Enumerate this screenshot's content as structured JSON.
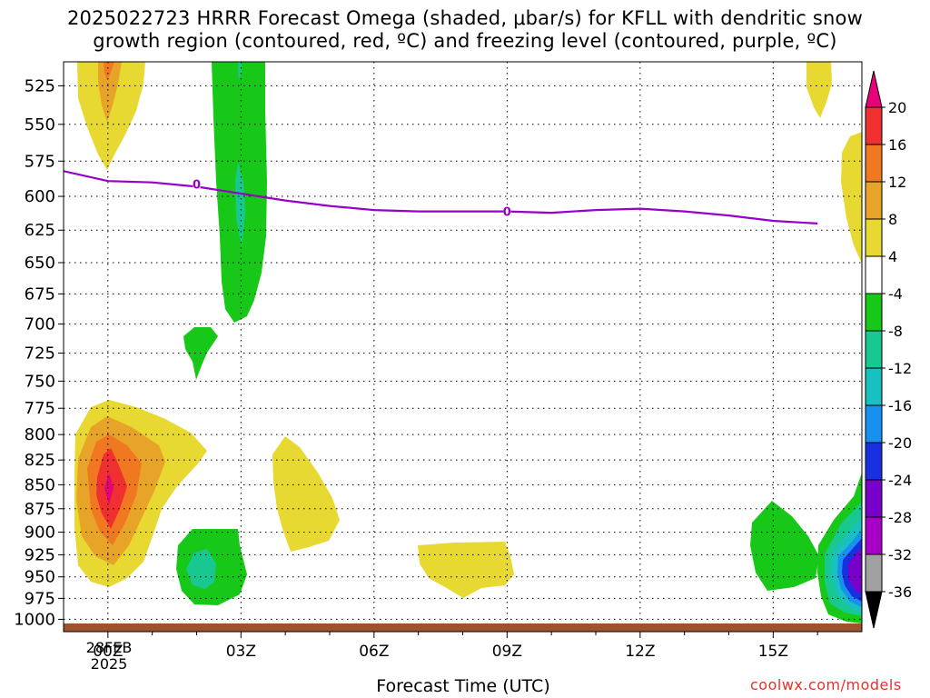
{
  "title": {
    "line1": "2025022723 HRRR Forecast Omega (shaded, μbar/s) for KFLL with dendritic snow",
    "line2": "growth region (contoured, red, ºC) and freezing level (contoured, purple, ºC)"
  },
  "credit": "coolwx.com/models",
  "chart_data": {
    "type": "contour",
    "xlabel": "Forecast Time (UTC)",
    "x_ticks": [
      "00Z",
      "03Z",
      "06Z",
      "09Z",
      "12Z",
      "15Z"
    ],
    "x_tick_hours": [
      1,
      4,
      7,
      10,
      13,
      16
    ],
    "x_range_hours": [
      0,
      18
    ],
    "date_label": [
      "28FEB",
      "2025"
    ],
    "y_ticks": [
      525,
      550,
      575,
      600,
      625,
      650,
      675,
      700,
      725,
      750,
      775,
      800,
      825,
      850,
      875,
      900,
      925,
      950,
      975,
      1000
    ],
    "y_axis": "pressure (hPa), log scale, top 510 bottom 1015",
    "grid": true,
    "colorbar": {
      "levels": [
        20,
        16,
        12,
        8,
        4,
        -4,
        -8,
        -12,
        -16,
        -20,
        -24,
        -28,
        -32,
        -36
      ],
      "colors": [
        "#e8007a",
        "#f03030",
        "#f07820",
        "#e8a428",
        "#e8d832",
        "#ffffff",
        "#18c818",
        "#18c890",
        "#18c0c0",
        "#1890f0",
        "#1830e0",
        "#7800c8",
        "#a800c8",
        "#a0a0a0",
        "#000000"
      ]
    },
    "freezing_level": {
      "color": "#9600c8",
      "label": "0",
      "points": [
        [
          0,
          582
        ],
        [
          1,
          589
        ],
        [
          2,
          590
        ],
        [
          3,
          593
        ],
        [
          4,
          598
        ],
        [
          5,
          603
        ],
        [
          6,
          607
        ],
        [
          7,
          610
        ],
        [
          8,
          611
        ],
        [
          9,
          611
        ],
        [
          10,
          611
        ],
        [
          11,
          612
        ],
        [
          12,
          610
        ],
        [
          13,
          609
        ],
        [
          14,
          611
        ],
        [
          15,
          614
        ],
        [
          16,
          618
        ],
        [
          17,
          620
        ]
      ],
      "label_points": [
        [
          3,
          591
        ],
        [
          10,
          611
        ]
      ]
    },
    "ground_color": "#a0522d"
  }
}
